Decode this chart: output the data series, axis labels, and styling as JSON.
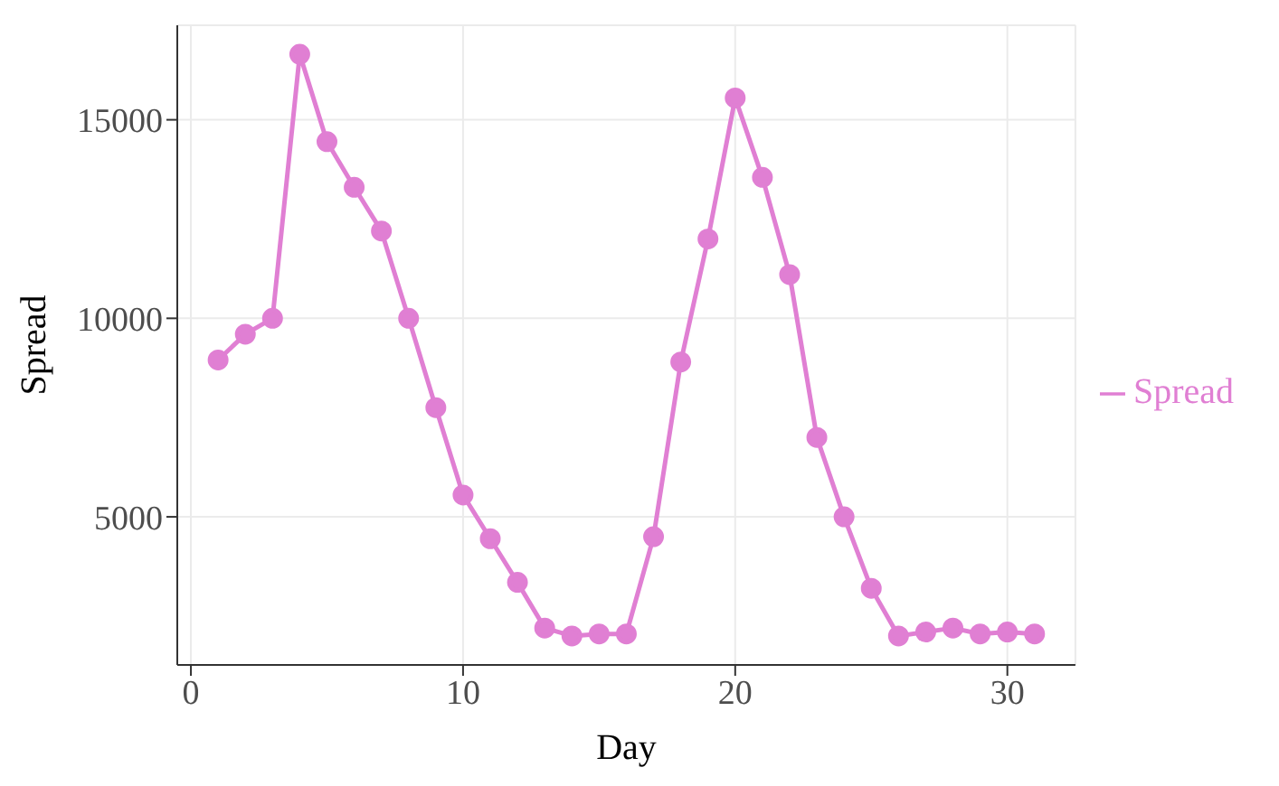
{
  "chart_data": {
    "type": "line",
    "xlabel": "Day",
    "ylabel": "Spread",
    "x": [
      1,
      2,
      3,
      4,
      5,
      6,
      7,
      8,
      9,
      10,
      11,
      12,
      13,
      14,
      15,
      16,
      17,
      18,
      19,
      20,
      21,
      22,
      23,
      24,
      25,
      26,
      27,
      28,
      29,
      30,
      31
    ],
    "series": [
      {
        "name": "Spread",
        "color": "#e07fd3",
        "values": [
          8950,
          9600,
          10000,
          16650,
          14450,
          13300,
          12200,
          10000,
          7750,
          5550,
          4450,
          3350,
          2200,
          2000,
          2050,
          2050,
          4500,
          8900,
          12000,
          15550,
          13550,
          11100,
          7000,
          5000,
          3200,
          2000,
          2100,
          2200,
          2050,
          2100,
          2050
        ]
      }
    ],
    "xlim": [
      -0.5,
      32.5
    ],
    "xticks": [
      0,
      10,
      20,
      30
    ],
    "ylim": [
      1270,
      17380
    ],
    "yticks": [
      5000,
      10000,
      15000
    ],
    "grid": true,
    "legend": "right",
    "marker": "circle",
    "line_style": "solid"
  }
}
